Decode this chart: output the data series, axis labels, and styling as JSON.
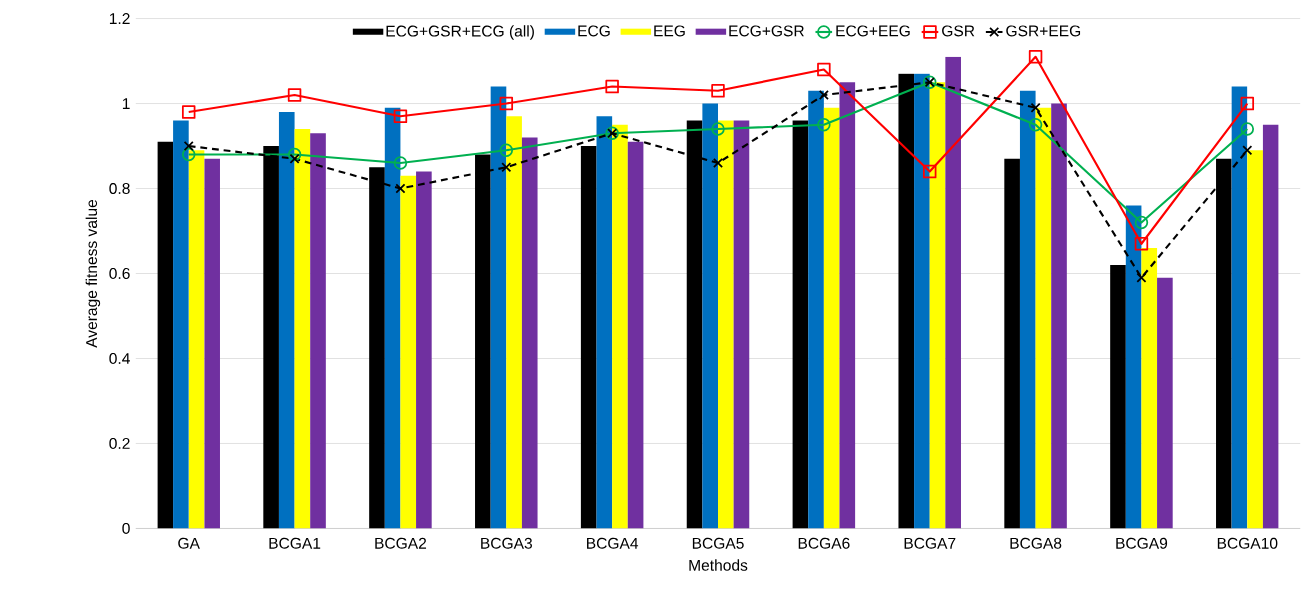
{
  "chart_data": {
    "type": "bar",
    "xlabel": "Methods",
    "ylabel": "Average fitness value",
    "categories": [
      "GA",
      "BCGA1",
      "BCGA2",
      "BCGA3",
      "BCGA4",
      "BCGA5",
      "BCGA6",
      "BCGA7",
      "BCGA8",
      "BCGA9",
      "BCGA10"
    ],
    "ylim": [
      0,
      1.2
    ],
    "yticks": [
      0,
      0.2,
      0.4,
      0.6,
      0.8,
      1,
      1.2
    ],
    "grid": "y",
    "legend": "top",
    "series": [
      {
        "name": "ECG+GSR+ECG (all)",
        "color": "#000000",
        "values": [
          0.91,
          0.9,
          0.85,
          0.88,
          0.9,
          0.96,
          0.96,
          1.07,
          0.87,
          0.62,
          0.87
        ]
      },
      {
        "name": "ECG",
        "color": "#0070c0",
        "values": [
          0.96,
          0.98,
          0.99,
          1.04,
          0.97,
          1.0,
          1.03,
          1.07,
          1.03,
          0.76,
          1.04
        ]
      },
      {
        "name": "EEG",
        "color": "#ffff00",
        "values": [
          0.89,
          0.94,
          0.83,
          0.97,
          0.95,
          0.96,
          0.99,
          1.05,
          0.99,
          0.66,
          0.89
        ]
      },
      {
        "name": "ECG+GSR",
        "color": "#7030a0",
        "values": [
          0.87,
          0.93,
          0.84,
          0.92,
          0.91,
          0.96,
          1.05,
          1.11,
          1.0,
          0.59,
          0.95
        ]
      },
      {
        "name": "ECG+EEG",
        "type": "line",
        "color": "#00b050",
        "marker": "circle",
        "line_style": "solid",
        "values": [
          0.88,
          0.88,
          0.86,
          0.89,
          0.93,
          0.94,
          0.95,
          1.05,
          0.95,
          0.72,
          0.94
        ]
      },
      {
        "name": "GSR",
        "type": "line",
        "color": "#ff0000",
        "marker": "square",
        "line_style": "solid",
        "values": [
          0.98,
          1.02,
          0.97,
          1.0,
          1.04,
          1.03,
          1.08,
          0.84,
          1.11,
          0.67,
          1.0
        ]
      },
      {
        "name": "GSR+EEG",
        "type": "line",
        "color": "#000000",
        "marker": "cross",
        "line_style": "dashed",
        "values": [
          0.9,
          0.87,
          0.8,
          0.85,
          0.93,
          0.86,
          1.02,
          1.05,
          0.99,
          0.59,
          0.89
        ]
      }
    ]
  }
}
